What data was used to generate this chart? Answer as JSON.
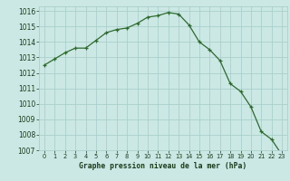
{
  "x": [
    0,
    1,
    2,
    3,
    4,
    5,
    6,
    7,
    8,
    9,
    10,
    11,
    12,
    13,
    14,
    15,
    16,
    17,
    18,
    19,
    20,
    21,
    22,
    23
  ],
  "y": [
    1012.5,
    1012.9,
    1013.3,
    1013.6,
    1013.6,
    1014.1,
    1014.6,
    1014.8,
    1014.9,
    1015.2,
    1015.6,
    1015.7,
    1015.9,
    1015.8,
    1015.1,
    1014.0,
    1013.5,
    1012.8,
    1011.3,
    1010.8,
    1009.8,
    1008.2,
    1007.7,
    1006.7
  ],
  "line_color": "#2d6a2d",
  "marker_color": "#2d6a2d",
  "bg_color": "#cce8e4",
  "grid_color": "#aacfcb",
  "xlabel": "Graphe pression niveau de la mer (hPa)",
  "xlabel_color": "#1a3a1a",
  "tick_color": "#1a3a1a",
  "ylim_min": 1007,
  "ylim_max": 1016,
  "ytick_step": 1,
  "xtick_labels": [
    "0",
    "1",
    "2",
    "3",
    "4",
    "5",
    "6",
    "7",
    "8",
    "9",
    "10",
    "11",
    "12",
    "13",
    "14",
    "15",
    "16",
    "17",
    "18",
    "19",
    "20",
    "21",
    "22",
    "23"
  ]
}
